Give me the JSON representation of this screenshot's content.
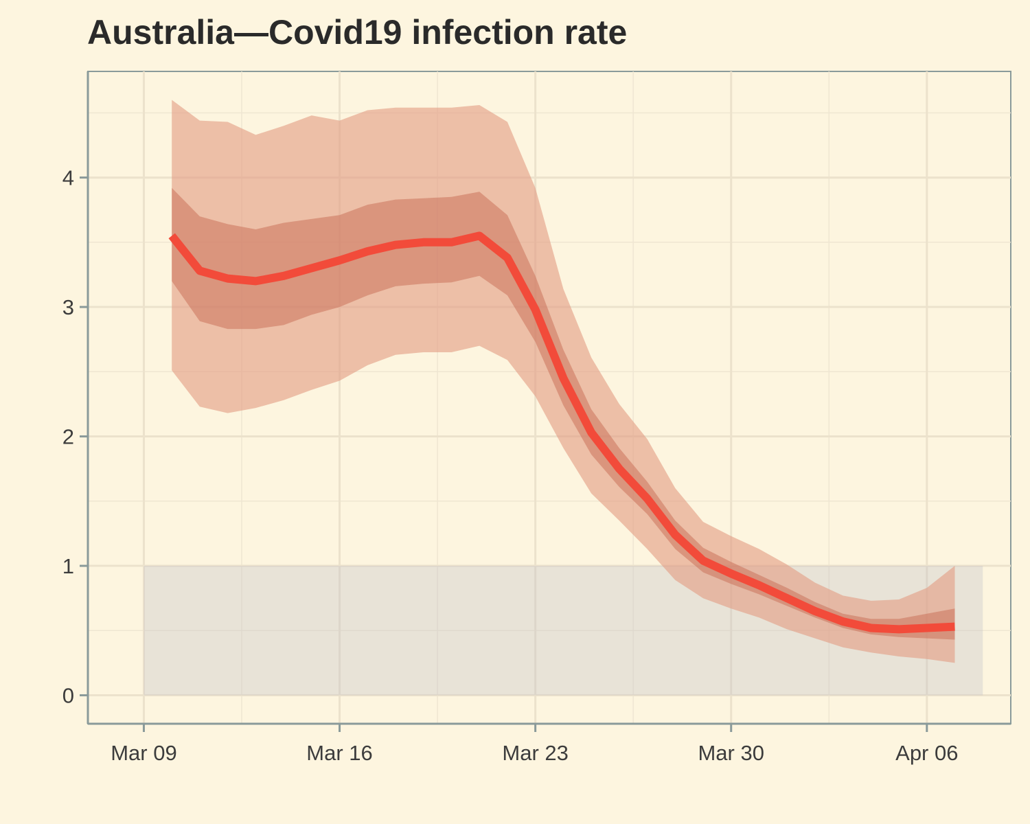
{
  "chart_data": {
    "type": "line",
    "title": "Australia—Covid19 infection rate",
    "xlabel": "",
    "ylabel": "",
    "x_start": "2020-03-10",
    "x_ticks": [
      {
        "date": "2020-03-09",
        "label": "Mar 09"
      },
      {
        "date": "2020-03-16",
        "label": "Mar 16"
      },
      {
        "date": "2020-03-23",
        "label": "Mar 23"
      },
      {
        "date": "2020-03-30",
        "label": "Mar 30"
      },
      {
        "date": "2020-04-06",
        "label": "Apr 06"
      }
    ],
    "xlim": [
      "2020-03-07",
      "2020-04-09"
    ],
    "ylim": [
      -0.22,
      4.82
    ],
    "y_ticks": [
      0,
      1,
      2,
      3,
      4
    ],
    "grid": true,
    "reference_band": {
      "x_from": "2020-03-09",
      "x_to": "2020-04-08",
      "y_from": 0,
      "y_to": 1
    },
    "series": [
      {
        "type": "line",
        "color": "#F24B3A",
        "values": [
          3.55,
          3.28,
          3.22,
          3.2,
          3.24,
          3.3,
          3.36,
          3.43,
          3.48,
          3.5,
          3.5,
          3.55,
          3.38,
          2.98,
          2.45,
          2.03,
          1.75,
          1.52,
          1.24,
          1.04,
          0.94,
          0.85,
          0.75,
          0.65,
          0.57,
          0.52,
          0.51,
          0.52,
          0.53
        ]
      },
      {
        "type": "band",
        "color": "#C86B54",
        "lower": [
          3.2,
          2.89,
          2.83,
          2.83,
          2.86,
          2.94,
          3.0,
          3.09,
          3.16,
          3.18,
          3.19,
          3.24,
          3.09,
          2.73,
          2.24,
          1.86,
          1.61,
          1.4,
          1.13,
          0.95,
          0.86,
          0.78,
          0.69,
          0.6,
          0.52,
          0.47,
          0.45,
          0.44,
          0.43
        ],
        "upper": [
          3.92,
          3.7,
          3.64,
          3.6,
          3.65,
          3.68,
          3.71,
          3.79,
          3.83,
          3.84,
          3.85,
          3.89,
          3.71,
          3.24,
          2.67,
          2.21,
          1.91,
          1.65,
          1.35,
          1.14,
          1.03,
          0.93,
          0.83,
          0.72,
          0.63,
          0.59,
          0.59,
          0.63,
          0.67
        ]
      },
      {
        "type": "band",
        "color": "#E39B82",
        "lower": [
          2.51,
          2.23,
          2.18,
          2.22,
          2.28,
          2.36,
          2.43,
          2.55,
          2.63,
          2.65,
          2.65,
          2.7,
          2.59,
          2.31,
          1.91,
          1.56,
          1.35,
          1.13,
          0.89,
          0.75,
          0.67,
          0.6,
          0.51,
          0.44,
          0.37,
          0.33,
          0.3,
          0.28,
          0.25
        ],
        "upper": [
          4.6,
          4.44,
          4.43,
          4.33,
          4.4,
          4.48,
          4.44,
          4.52,
          4.54,
          4.54,
          4.54,
          4.56,
          4.43,
          3.92,
          3.14,
          2.61,
          2.25,
          1.98,
          1.6,
          1.34,
          1.23,
          1.13,
          1.01,
          0.87,
          0.77,
          0.73,
          0.74,
          0.83,
          1.0
        ]
      }
    ]
  }
}
